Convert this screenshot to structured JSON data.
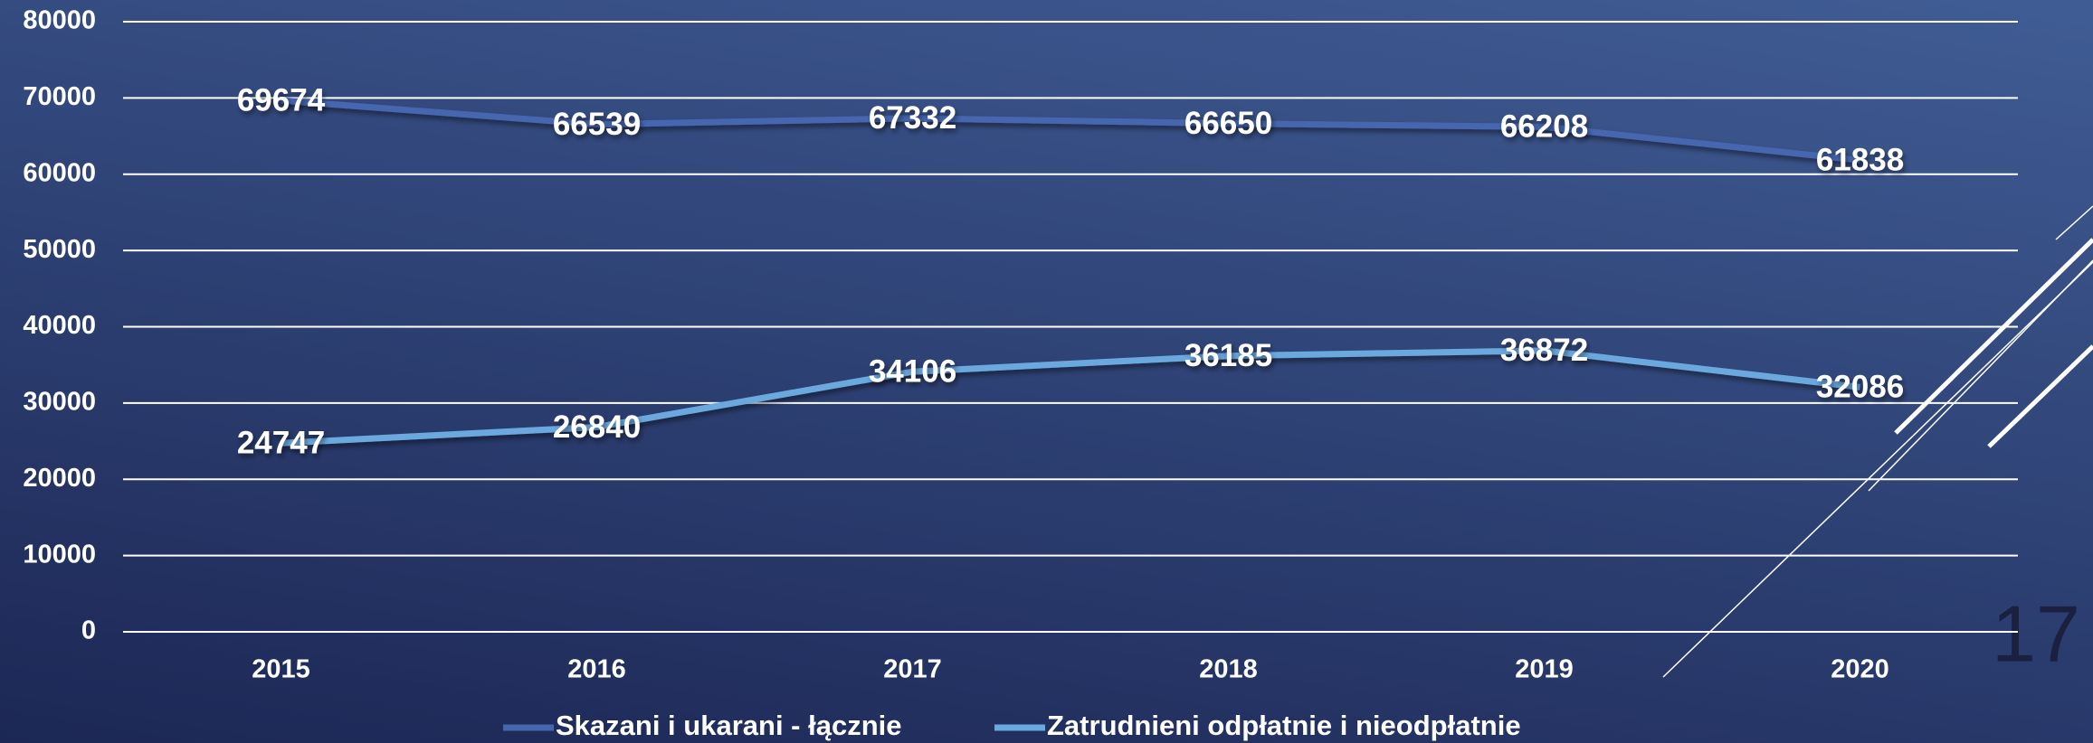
{
  "chart_data": {
    "type": "line",
    "categories": [
      "2015",
      "2016",
      "2017",
      "2018",
      "2019",
      "2020"
    ],
    "series": [
      {
        "name": "Skazani i ukarani - łącznie",
        "color": "#4666b0",
        "values": [
          69674,
          66539,
          67332,
          66650,
          66208,
          61838
        ]
      },
      {
        "name": "Zatrudnieni odpłatnie i nieodpłatnie",
        "color": "#6aa8de",
        "values": [
          24747,
          26840,
          34106,
          36185,
          36872,
          32086
        ]
      }
    ],
    "ylim": [
      0,
      80000
    ],
    "yticks": [
      0,
      10000,
      20000,
      30000,
      40000,
      50000,
      60000,
      70000,
      80000
    ],
    "grid": true,
    "legend": "bottom",
    "data_labels": true
  },
  "page_number": "17"
}
